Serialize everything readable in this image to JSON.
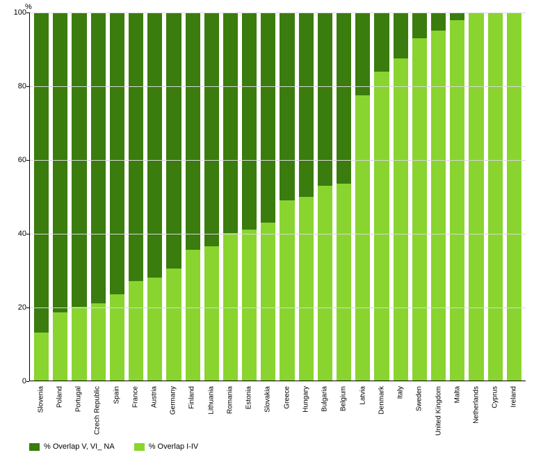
{
  "chart": {
    "type": "stacked-bar",
    "y_axis_title": "%",
    "ylim": [
      0,
      100
    ],
    "ytick_step": 20,
    "yticks": [
      0,
      20,
      40,
      60,
      80,
      100
    ],
    "grid_color": "#d9d9d9",
    "background_color": "#ffffff",
    "axis_color": "#000000",
    "bar_total": 100,
    "series": [
      {
        "key": "overlap_v_vi_na",
        "label": "% Overlap V, VI_ NA",
        "color": "#3a7c0d"
      },
      {
        "key": "overlap_i_iv",
        "label": "% Overlap I-IV",
        "color": "#89d42f"
      }
    ],
    "categories": [
      "Slovenia",
      "Poland",
      "Portugal",
      "Czech Republic",
      "Spain",
      "France",
      "Austria",
      "Germany",
      "Finland",
      "Lithuania",
      "Romania",
      "Estonia",
      "Slovakia",
      "Greece",
      "Hungary",
      "Bulgaria",
      "Belgium",
      "Latvia",
      "Denmark",
      "Italy",
      "Sweden",
      "United Kingdom",
      "Malta",
      "Netherlands",
      "Cyprus",
      "Ireland"
    ],
    "values_overlap_i_iv": [
      13,
      18.5,
      20,
      21,
      23.5,
      27,
      28,
      30.5,
      35.5,
      36.5,
      40,
      41,
      43,
      49,
      50,
      53,
      53.5,
      77.5,
      84,
      87.5,
      93,
      95,
      98,
      100,
      100,
      100
    ],
    "label_fontsize": 11,
    "tick_fontsize": 10
  }
}
